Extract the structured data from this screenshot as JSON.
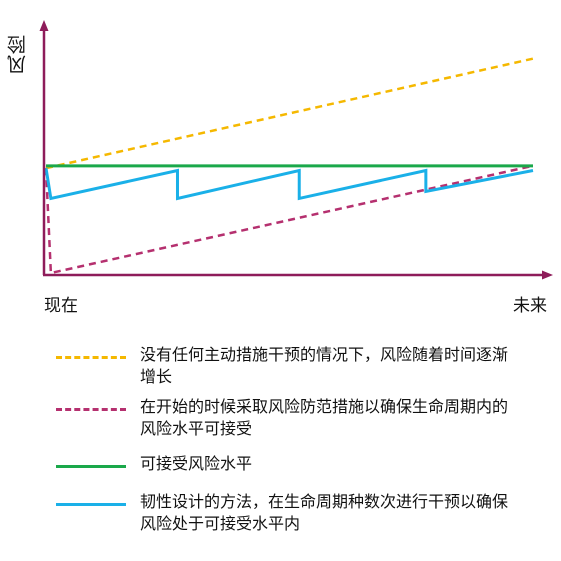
{
  "chart_data": {
    "type": "line",
    "ylabel": "风险",
    "xlabel": "",
    "x_ticks": [
      "现在",
      "未来"
    ],
    "x": [
      0,
      1
    ],
    "ylim": [
      0,
      1
    ],
    "series": [
      {
        "name": "没有任何主动措施干预的情况下，风险随着时间逐渐增长",
        "color": "#f5b800",
        "dash": "dashed",
        "points": [
          [
            0,
            0.45
          ],
          [
            1,
            0.92
          ]
        ]
      },
      {
        "name": "在开始的时候采取风险防范措施以确保生命周期内的风险水平可接受",
        "color": "#b5306f",
        "dash": "dashed",
        "points": [
          [
            0,
            0.45
          ],
          [
            0.01,
            0.0
          ],
          [
            1,
            0.46
          ]
        ]
      },
      {
        "name": "可接受风险水平",
        "color": "#1aa84a",
        "dash": "solid",
        "points": [
          [
            0,
            0.46
          ],
          [
            1,
            0.46
          ]
        ]
      },
      {
        "name": "韧性设计的方法，在生命周期种数次进行干预以确保风险处于可接受水平内",
        "color": "#1ab0e8",
        "dash": "solid",
        "points": [
          [
            0,
            0.45
          ],
          [
            0.01,
            0.32
          ],
          [
            0.27,
            0.44
          ],
          [
            0.27,
            0.32
          ],
          [
            0.52,
            0.44
          ],
          [
            0.52,
            0.32
          ],
          [
            0.78,
            0.44
          ],
          [
            0.78,
            0.35
          ],
          [
            1.0,
            0.44
          ]
        ]
      }
    ],
    "legend_placement": "bottom",
    "grid": false
  },
  "colors": {
    "axis": "#8e1c5a"
  }
}
